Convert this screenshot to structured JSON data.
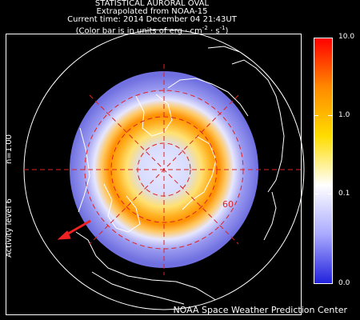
{
  "header": {
    "line1": "STATISTICAL AURORAL OVAL",
    "line2": "Extrapolated from NOAA-15",
    "line3": "Current time: 2014 December 04 21:43UT",
    "line4_prefix": "(Color bar is in units of erg · cm",
    "line4_sup1": "-2",
    "line4_mid": " · s",
    "line4_sup2": "-1",
    "line4_suffix": ")"
  },
  "left_labels": {
    "n_value": "n=1.00",
    "activity": "Activity level 6"
  },
  "map": {
    "latitude_label": "60",
    "grid_color": "#dd2222",
    "arrow_color": "#ee2222"
  },
  "colorbar": {
    "tick_labels": [
      "10.0",
      "1.0",
      "0.1",
      "0.0"
    ],
    "colors": [
      "#ff0000",
      "#ff8a00",
      "#ffdd00",
      "#ffffff",
      "#aaaaff",
      "#2222dd"
    ]
  },
  "footer": "NOAA Space Weather Prediction Center"
}
